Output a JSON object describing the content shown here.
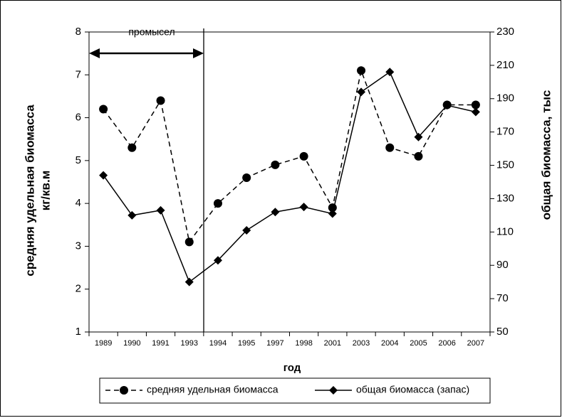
{
  "chart_data": {
    "type": "line",
    "x_label": "год",
    "y_label": [
      "средняя удельная биомасса",
      "кг/кв.м"
    ],
    "y2_label": "общая биомасса, тыс",
    "annotation": "промысел",
    "categories": [
      "1989",
      "1990",
      "1991",
      "1993",
      "1994",
      "1995",
      "1997",
      "1998",
      "2001",
      "2003",
      "2004",
      "2005",
      "2006",
      "2007"
    ],
    "series": [
      {
        "name": "средняя удельная биомасса",
        "color": "#000000",
        "dash": true,
        "marker": "circle",
        "values": [
          6.2,
          5.3,
          6.4,
          3.1,
          4.0,
          4.6,
          4.9,
          5.1,
          3.9,
          7.1,
          5.3,
          5.1,
          6.3,
          6.3
        ]
      },
      {
        "name": "общая биомасса (запас)",
        "color": "#000000",
        "dash": false,
        "marker": "diamond",
        "axis": "y2",
        "values": [
          144,
          120,
          123,
          80,
          93,
          111,
          122,
          125,
          121,
          194,
          206,
          167,
          186,
          182
        ]
      }
    ],
    "ylim": [
      1,
      8
    ],
    "yticks": [
      1,
      2,
      3,
      4,
      5,
      6,
      7,
      8
    ],
    "y2lim": [
      50,
      230
    ],
    "y2ticks": [
      50,
      70,
      90,
      110,
      130,
      150,
      170,
      190,
      210,
      230
    ],
    "grid": false,
    "legend": "bottom"
  }
}
